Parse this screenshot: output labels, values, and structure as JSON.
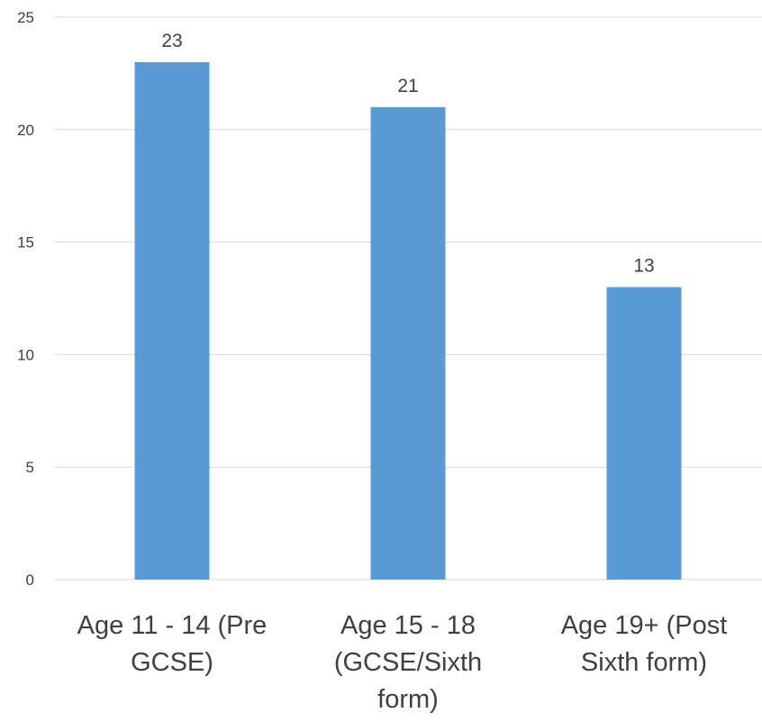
{
  "chart_data": {
    "type": "bar",
    "title": "",
    "xlabel": "",
    "ylabel": "",
    "categories": [
      [
        "Age 11 - 14 (Pre",
        "GCSE)"
      ],
      [
        "Age 15 - 18",
        "(GCSE/Sixth",
        "form)"
      ],
      [
        "Age 19+ (Post",
        "Sixth form)"
      ]
    ],
    "values": [
      23,
      21,
      13
    ],
    "data_labels": [
      "23",
      "21",
      "13"
    ],
    "ylim": [
      0,
      25
    ],
    "yticks": [
      {
        "value": 0,
        "label": "0"
      },
      {
        "value": 5,
        "label": "5"
      },
      {
        "value": 10,
        "label": "10"
      },
      {
        "value": 15,
        "label": "15"
      },
      {
        "value": 20,
        "label": "20"
      },
      {
        "value": 25,
        "label": "25"
      }
    ],
    "grid": true,
    "legend": "none",
    "colors": {
      "bar": "#5b9bd5",
      "grid": "#d9d9d9",
      "text": "#404040"
    }
  }
}
